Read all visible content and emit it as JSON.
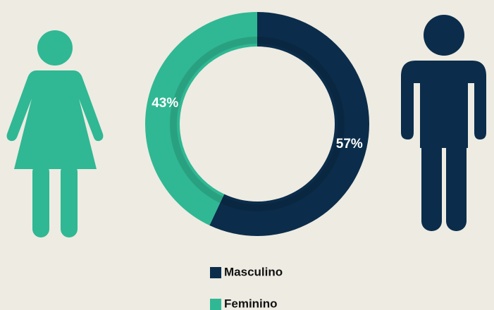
{
  "chart_data": {
    "type": "pie",
    "categories": [
      "Masculino",
      "Feminino"
    ],
    "values": [
      57,
      43
    ],
    "value_labels": [
      "57%",
      "43%"
    ],
    "colors": [
      "#0b2d4b",
      "#2fb893"
    ]
  }
}
